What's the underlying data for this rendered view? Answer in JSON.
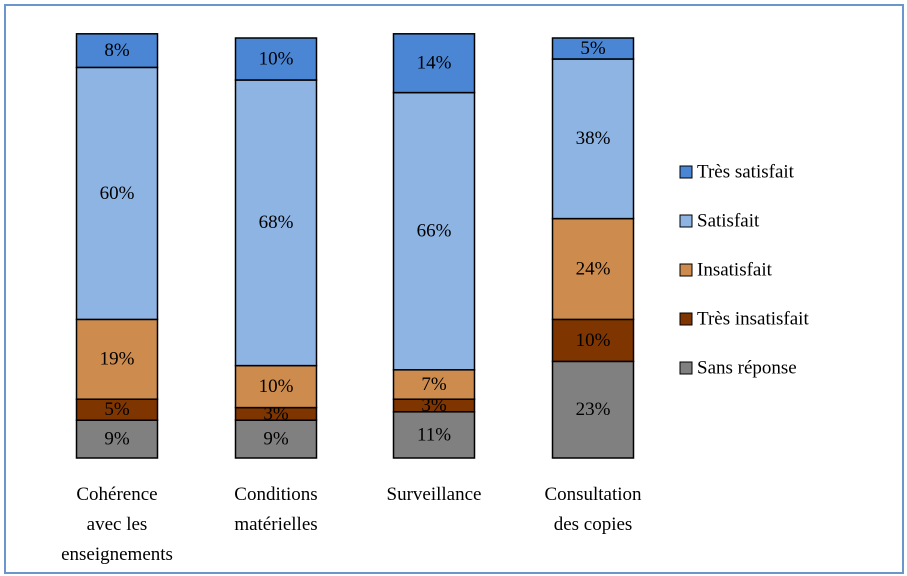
{
  "chart_data": {
    "type": "stacked-bar",
    "categories": [
      "Cohérence avec les enseignements",
      "Conditions matérielles",
      "Surveillance",
      "Consultation des copies"
    ],
    "series": [
      {
        "name": "Sans réponse",
        "color": "#808080",
        "values": [
          9,
          9,
          11,
          23
        ],
        "value_labels": [
          "9%",
          "9%",
          "11%",
          "23%"
        ]
      },
      {
        "name": "Très insatisfait",
        "color": "#7f3500",
        "values": [
          5,
          3,
          3,
          10
        ],
        "value_labels": [
          "5%",
          "3%",
          "3%",
          "10%"
        ]
      },
      {
        "name": "Insatisfait",
        "color": "#cd8c4e",
        "values": [
          19,
          10,
          7,
          24
        ],
        "value_labels": [
          "19%",
          "10%",
          "7%",
          "24%"
        ]
      },
      {
        "name": "Satisfait",
        "color": "#8db4e3",
        "values": [
          60,
          68,
          66,
          38
        ],
        "value_labels": [
          "60%",
          "68%",
          "66%",
          "38%"
        ]
      },
      {
        "name": "Très satisfait",
        "color": "#4a86d4",
        "values": [
          8,
          10,
          14,
          5
        ],
        "value_labels": [
          "8%",
          "10%",
          "14%",
          "5%"
        ]
      }
    ],
    "legend": "right"
  }
}
